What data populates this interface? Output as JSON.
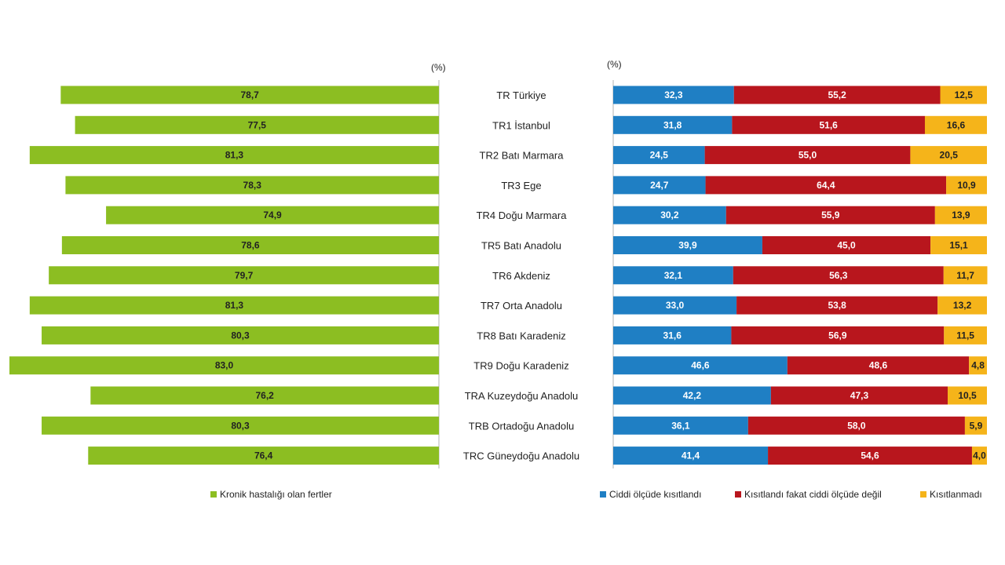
{
  "chart_data": [
    {
      "type": "bar",
      "orientation": "horizontal",
      "direction": "right-to-left",
      "unit_label": "(%)",
      "categories": [
        "TR Türkiye",
        "TR1 İstanbul",
        "TR2 Batı Marmara",
        "TR3 Ege",
        "TR4 Doğu Marmara",
        "TR5 Batı Anadolu",
        "TR6 Akdeniz",
        "TR7 Orta Anadolu",
        "TR8 Batı Karadeniz",
        "TR9 Doğu Karadeniz",
        "TRA Kuzeydoğu Anadolu",
        "TRB Ortadoğu Anadolu",
        "TRC Güneydoğu Anadolu"
      ],
      "series": [
        {
          "name": "Kronik hastalığı olan fertler",
          "color": "#8cbe22",
          "values": [
            78.7,
            77.5,
            81.3,
            78.3,
            74.9,
            78.6,
            79.7,
            81.3,
            80.3,
            83.0,
            76.2,
            80.3,
            76.4
          ],
          "labels": [
            "78,7",
            "77,5",
            "81,3",
            "78,3",
            "74,9",
            "78,6",
            "79,7",
            "81,3",
            "80,3",
            "83,0",
            "76,2",
            "80,3",
            "76,4"
          ]
        }
      ],
      "legend_position": "bottom-right"
    },
    {
      "type": "bar",
      "orientation": "horizontal",
      "stacked": true,
      "unit_label": "(%)",
      "categories": [
        "TR Türkiye",
        "TR1 İstanbul",
        "TR2 Batı Marmara",
        "TR3 Ege",
        "TR4 Doğu Marmara",
        "TR5 Batı Anadolu",
        "TR6 Akdeniz",
        "TR7 Orta Anadolu",
        "TR8 Batı Karadeniz",
        "TR9 Doğu Karadeniz",
        "TRA Kuzeydoğu Anadolu",
        "TRB Ortadoğu Anadolu",
        "TRC Güneydoğu Anadolu"
      ],
      "series": [
        {
          "name": "Ciddi ölçüde kısıtlandı",
          "color": "#1f7fc4",
          "values": [
            32.3,
            31.8,
            24.5,
            24.7,
            30.2,
            39.9,
            32.1,
            33.0,
            31.6,
            46.6,
            42.2,
            36.1,
            41.4
          ],
          "labels": [
            "32,3",
            "31,8",
            "24,5",
            "24,7",
            "30,2",
            "39,9",
            "32,1",
            "33,0",
            "31,6",
            "46,6",
            "42,2",
            "36,1",
            "41,4"
          ]
        },
        {
          "name": "Kısıtlandı fakat ciddi ölçüde değil",
          "color": "#b8161d",
          "values": [
            55.2,
            51.6,
            55.0,
            64.4,
            55.9,
            45.0,
            56.3,
            53.8,
            56.9,
            48.6,
            47.3,
            58.0,
            54.6
          ],
          "labels": [
            "55,2",
            "51,6",
            "55,0",
            "64,4",
            "55,9",
            "45,0",
            "56,3",
            "53,8",
            "56,9",
            "48,6",
            "47,3",
            "58,0",
            "54,6"
          ]
        },
        {
          "name": "Kısıtlanmadı",
          "color": "#f5b41a",
          "values": [
            12.5,
            16.6,
            20.5,
            10.9,
            13.9,
            15.1,
            11.7,
            13.2,
            11.5,
            4.8,
            10.5,
            5.9,
            4.0
          ],
          "labels": [
            "12,5",
            "16,6",
            "20,5",
            "10,9",
            "13,9",
            "15,1",
            "11,7",
            "13,2",
            "11,5",
            "4,8",
            "10,5",
            "5,9",
            "4,0"
          ]
        }
      ],
      "legend_position": "bottom"
    }
  ]
}
